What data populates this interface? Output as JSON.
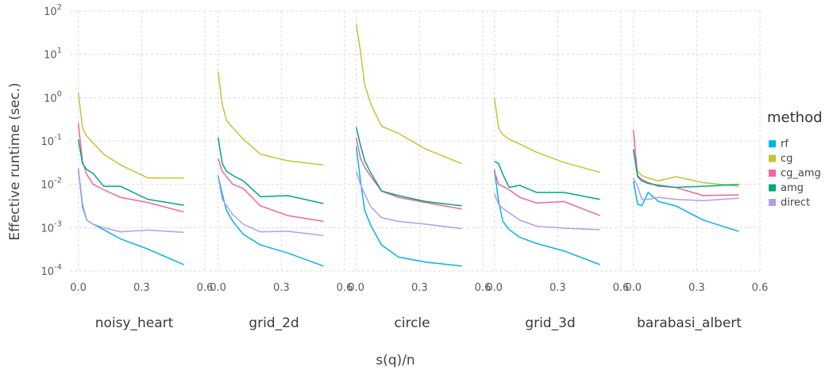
{
  "chart_data": {
    "type": "line",
    "xlabel": "s(q)/n",
    "ylabel": "Effective runtime (sec.)",
    "y_scale": "log10",
    "ylim": [
      0.0001,
      100
    ],
    "y_ticks": [
      {
        "value": 0.0001,
        "base": "10",
        "exp": "-4"
      },
      {
        "value": 0.001,
        "base": "10",
        "exp": "-3"
      },
      {
        "value": 0.01,
        "base": "10",
        "exp": "-2"
      },
      {
        "value": 0.1,
        "base": "10",
        "exp": "-1"
      },
      {
        "value": 1,
        "base": "10",
        "exp": "0"
      },
      {
        "value": 10,
        "base": "10",
        "exp": "1"
      },
      {
        "value": 100,
        "base": "10",
        "exp": "2"
      }
    ],
    "xlim": [
      -0.04,
      0.6
    ],
    "x_ticks": [
      {
        "value": 0.0,
        "label": "0.0"
      },
      {
        "value": 0.3,
        "label": "0.3"
      },
      {
        "value": 0.6,
        "label": "0.6"
      }
    ],
    "grid": true,
    "legend": {
      "title": "method",
      "position": "right",
      "entries": [
        {
          "name": "rf",
          "color": "#00b5e8"
        },
        {
          "name": "cg",
          "color": "#c8c232"
        },
        {
          "name": "cg_amg",
          "color": "#f2669b"
        },
        {
          "name": "amg",
          "color": "#00a87a"
        },
        {
          "name": "direct",
          "color": "#b39cf0"
        }
      ]
    },
    "facets": [
      {
        "label": "noisy_heart",
        "series": [
          {
            "name": "rf",
            "x": [
              0.0,
              0.02,
              0.04,
              0.07,
              0.12,
              0.2,
              0.33,
              0.5
            ],
            "y": [
              0.022,
              0.003,
              0.0015,
              0.0012,
              0.0009,
              0.00055,
              0.00032,
              0.00014
            ]
          },
          {
            "name": "cg",
            "x": [
              0.0,
              0.02,
              0.04,
              0.07,
              0.12,
              0.2,
              0.33,
              0.5
            ],
            "y": [
              1.3,
              0.2,
              0.13,
              0.09,
              0.05,
              0.028,
              0.014,
              0.014
            ]
          },
          {
            "name": "cg_amg",
            "x": [
              0.0,
              0.02,
              0.04,
              0.07,
              0.12,
              0.2,
              0.33,
              0.5
            ],
            "y": [
              0.26,
              0.033,
              0.017,
              0.01,
              0.0075,
              0.005,
              0.0038,
              0.0023
            ]
          },
          {
            "name": "amg",
            "x": [
              0.0,
              0.02,
              0.04,
              0.07,
              0.12,
              0.2,
              0.33,
              0.5
            ],
            "y": [
              0.11,
              0.03,
              0.022,
              0.018,
              0.009,
              0.009,
              0.0045,
              0.0033
            ]
          },
          {
            "name": "direct",
            "x": [
              0.0,
              0.02,
              0.04,
              0.07,
              0.12,
              0.2,
              0.33,
              0.5
            ],
            "y": [
              0.024,
              0.0035,
              0.0015,
              0.0012,
              0.001,
              0.0008,
              0.00088,
              0.00078
            ]
          }
        ]
      },
      {
        "label": "grid_2d",
        "series": [
          {
            "name": "rf",
            "x": [
              0.0,
              0.02,
              0.04,
              0.07,
              0.12,
              0.2,
              0.33,
              0.5
            ],
            "y": [
              0.016,
              0.006,
              0.0025,
              0.0014,
              0.0007,
              0.0004,
              0.00026,
              0.00013
            ]
          },
          {
            "name": "cg",
            "x": [
              0.0,
              0.02,
              0.04,
              0.07,
              0.12,
              0.2,
              0.33,
              0.5
            ],
            "y": [
              4.0,
              0.7,
              0.3,
              0.2,
              0.11,
              0.05,
              0.035,
              0.028
            ]
          },
          {
            "name": "cg_amg",
            "x": [
              0.0,
              0.02,
              0.04,
              0.07,
              0.12,
              0.2,
              0.33,
              0.5
            ],
            "y": [
              0.04,
              0.02,
              0.015,
              0.01,
              0.008,
              0.0032,
              0.0019,
              0.0014
            ]
          },
          {
            "name": "amg",
            "x": [
              0.0,
              0.02,
              0.04,
              0.07,
              0.12,
              0.2,
              0.33,
              0.5
            ],
            "y": [
              0.12,
              0.03,
              0.02,
              0.016,
              0.012,
              0.0052,
              0.0055,
              0.0036
            ]
          },
          {
            "name": "direct",
            "x": [
              0.0,
              0.02,
              0.04,
              0.07,
              0.12,
              0.2,
              0.33,
              0.5
            ],
            "y": [
              0.015,
              0.0045,
              0.0032,
              0.002,
              0.0012,
              0.0008,
              0.00082,
              0.00066
            ]
          }
        ]
      },
      {
        "label": "circle",
        "series": [
          {
            "name": "rf",
            "x": [
              0.0,
              0.02,
              0.04,
              0.07,
              0.12,
              0.2,
              0.33,
              0.5
            ],
            "y": [
              0.075,
              0.012,
              0.0025,
              0.0011,
              0.0004,
              0.00021,
              0.00016,
              0.00013
            ]
          },
          {
            "name": "cg",
            "x": [
              0.0,
              0.02,
              0.04,
              0.07,
              0.12,
              0.2,
              0.33,
              0.5
            ],
            "y": [
              50.0,
              12.0,
              2.0,
              0.7,
              0.22,
              0.15,
              0.065,
              0.03
            ]
          },
          {
            "name": "cg_amg",
            "x": [
              0.0,
              0.02,
              0.04,
              0.07,
              0.12,
              0.2,
              0.33,
              0.5
            ],
            "y": [
              0.12,
              0.04,
              0.025,
              0.015,
              0.007,
              0.005,
              0.0038,
              0.0027
            ]
          },
          {
            "name": "amg",
            "x": [
              0.0,
              0.02,
              0.04,
              0.07,
              0.12,
              0.2,
              0.33,
              0.5
            ],
            "y": [
              0.21,
              0.08,
              0.035,
              0.018,
              0.007,
              0.0055,
              0.004,
              0.0032
            ]
          },
          {
            "name": "direct",
            "x": [
              0.0,
              0.02,
              0.04,
              0.07,
              0.12,
              0.2,
              0.33,
              0.5
            ],
            "y": [
              0.02,
              0.01,
              0.006,
              0.003,
              0.0017,
              0.0014,
              0.0012,
              0.00095
            ]
          }
        ]
      },
      {
        "label": "grid_3d",
        "series": [
          {
            "name": "rf",
            "x": [
              0.0,
              0.02,
              0.04,
              0.07,
              0.12,
              0.2,
              0.33,
              0.5
            ],
            "y": [
              0.022,
              0.004,
              0.0014,
              0.0009,
              0.0006,
              0.00043,
              0.00029,
              0.00014
            ]
          },
          {
            "name": "cg",
            "x": [
              0.0,
              0.02,
              0.04,
              0.07,
              0.12,
              0.2,
              0.33,
              0.5
            ],
            "y": [
              1.0,
              0.2,
              0.14,
              0.11,
              0.085,
              0.055,
              0.032,
              0.019
            ]
          },
          {
            "name": "cg_amg",
            "x": [
              0.0,
              0.02,
              0.04,
              0.07,
              0.12,
              0.2,
              0.33,
              0.5
            ],
            "y": [
              0.02,
              0.01,
              0.009,
              0.0075,
              0.005,
              0.0037,
              0.004,
              0.0019
            ]
          },
          {
            "name": "amg",
            "x": [
              0.0,
              0.02,
              0.04,
              0.07,
              0.12,
              0.2,
              0.33,
              0.5
            ],
            "y": [
              0.034,
              0.03,
              0.017,
              0.0085,
              0.0095,
              0.0065,
              0.0065,
              0.0045
            ]
          },
          {
            "name": "direct",
            "x": [
              0.0,
              0.02,
              0.04,
              0.07,
              0.12,
              0.2,
              0.33,
              0.5
            ],
            "y": [
              0.006,
              0.0035,
              0.0028,
              0.0022,
              0.0015,
              0.00108,
              0.00097,
              0.0009
            ]
          }
        ]
      },
      {
        "label": "barabasi_albert",
        "series": [
          {
            "name": "rf",
            "x": [
              0.0,
              0.02,
              0.04,
              0.07,
              0.12,
              0.2,
              0.33,
              0.5
            ],
            "y": [
              0.012,
              0.0035,
              0.0032,
              0.0065,
              0.004,
              0.0032,
              0.0015,
              0.00082
            ]
          },
          {
            "name": "cg",
            "x": [
              0.0,
              0.02,
              0.04,
              0.07,
              0.12,
              0.2,
              0.33,
              0.5
            ],
            "y": [
              0.06,
              0.02,
              0.016,
              0.014,
              0.012,
              0.015,
              0.011,
              0.009
            ]
          },
          {
            "name": "cg_amg",
            "x": [
              0.0,
              0.02,
              0.04,
              0.07,
              0.12,
              0.2,
              0.33,
              0.5
            ],
            "y": [
              0.18,
              0.016,
              0.013,
              0.011,
              0.009,
              0.0085,
              0.0055,
              0.0057
            ]
          },
          {
            "name": "amg",
            "x": [
              0.0,
              0.02,
              0.04,
              0.07,
              0.12,
              0.2,
              0.33,
              0.5
            ],
            "y": [
              0.065,
              0.015,
              0.012,
              0.0105,
              0.0095,
              0.0085,
              0.009,
              0.01
            ]
          },
          {
            "name": "direct",
            "x": [
              0.0,
              0.02,
              0.04,
              0.07,
              0.12,
              0.2,
              0.33,
              0.5
            ],
            "y": [
              0.014,
              0.009,
              0.0045,
              0.0045,
              0.005,
              0.0045,
              0.0042,
              0.0048
            ]
          }
        ]
      }
    ]
  }
}
